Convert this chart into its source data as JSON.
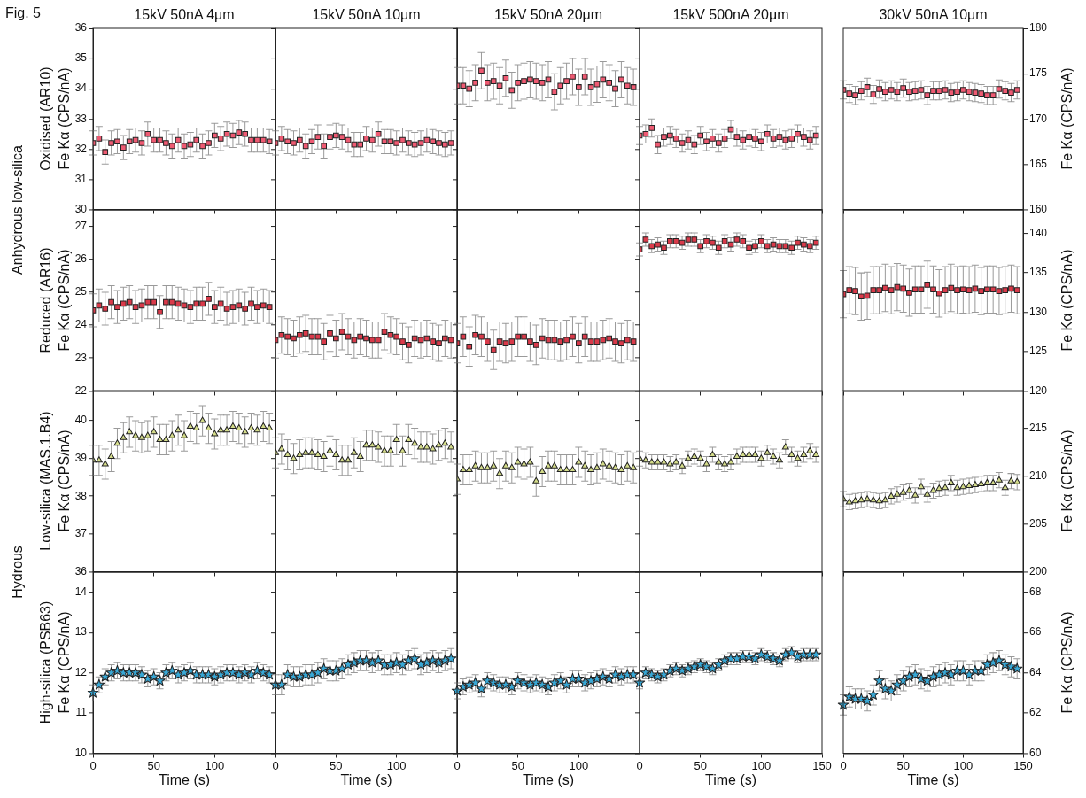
{
  "chart_data": [
    {
      "type": "scatter",
      "title": "15kV 50nA 4μm",
      "ylabel": "Fe Kα (CPS/nA)",
      "annotations": [
        "Fig. 5",
        "Anhydrous low-silica",
        "Oxidised (AR10)"
      ],
      "marker": "square",
      "color": "#ee5a72",
      "x": [
        0,
        5,
        10,
        15,
        20,
        25,
        30,
        35,
        40,
        45,
        50,
        55,
        60,
        65,
        70,
        75,
        80,
        85,
        90,
        95,
        100,
        105,
        110,
        115,
        120,
        125,
        130,
        135,
        140,
        145
      ],
      "values": [
        32.2,
        32.35,
        31.9,
        32.2,
        32.25,
        32.05,
        32.25,
        32.3,
        32.2,
        32.5,
        32.3,
        32.3,
        32.2,
        32.1,
        32.3,
        32.1,
        32.15,
        32.3,
        32.1,
        32.2,
        32.45,
        32.35,
        32.5,
        32.45,
        32.55,
        32.5,
        32.3,
        32.3,
        32.3,
        32.25
      ],
      "errors": [
        0.4,
        0.4,
        0.4,
        0.4,
        0.4,
        0.4,
        0.4,
        0.4,
        0.4,
        0.4,
        0.4,
        0.4,
        0.4,
        0.4,
        0.4,
        0.4,
        0.4,
        0.4,
        0.4,
        0.4,
        0.4,
        0.4,
        0.4,
        0.4,
        0.4,
        0.4,
        0.4,
        0.4,
        0.4,
        0.4
      ],
      "xlim": [
        0,
        150
      ],
      "xticks": [
        0,
        50,
        100,
        150
      ],
      "ylim": [
        30,
        36
      ],
      "yticks": [
        30,
        31,
        32,
        33,
        34,
        35,
        36
      ],
      "tick_labels": "y"
    },
    {
      "type": "scatter",
      "title": "15kV 50nA 10μm",
      "marker": "square",
      "color": "#ee5a72",
      "x": [
        0,
        5,
        10,
        15,
        20,
        25,
        30,
        35,
        40,
        45,
        50,
        55,
        60,
        65,
        70,
        75,
        80,
        85,
        90,
        95,
        100,
        105,
        110,
        115,
        120,
        125,
        130,
        135,
        140,
        145
      ],
      "values": [
        32.2,
        32.35,
        32.25,
        32.2,
        32.3,
        32.1,
        32.25,
        32.4,
        32.1,
        32.4,
        32.45,
        32.4,
        32.3,
        32.15,
        32.15,
        32.35,
        32.3,
        32.5,
        32.25,
        32.25,
        32.2,
        32.3,
        32.2,
        32.15,
        32.2,
        32.3,
        32.25,
        32.2,
        32.15,
        32.2
      ],
      "errors": [
        0.4,
        0.4,
        0.4,
        0.4,
        0.4,
        0.4,
        0.4,
        0.4,
        0.4,
        0.4,
        0.4,
        0.4,
        0.4,
        0.4,
        0.4,
        0.4,
        0.4,
        0.4,
        0.4,
        0.4,
        0.4,
        0.4,
        0.4,
        0.4,
        0.4,
        0.4,
        0.4,
        0.4,
        0.4,
        0.4
      ],
      "xlim": [
        0,
        150
      ],
      "xticks": [
        0,
        50,
        100,
        150
      ],
      "ylim": [
        30,
        36
      ],
      "yticks": [
        30,
        31,
        32,
        33,
        34,
        35,
        36
      ],
      "tick_labels": false
    },
    {
      "type": "scatter",
      "title": "15kV 50nA 20μm",
      "marker": "square",
      "color": "#ee5a72",
      "x": [
        0,
        5,
        10,
        15,
        20,
        25,
        30,
        35,
        40,
        45,
        50,
        55,
        60,
        65,
        70,
        75,
        80,
        85,
        90,
        95,
        100,
        105,
        110,
        115,
        120,
        125,
        130,
        135,
        140,
        145
      ],
      "values": [
        34.1,
        34.1,
        34.0,
        34.2,
        34.6,
        34.2,
        34.25,
        34.1,
        34.35,
        33.95,
        34.2,
        34.25,
        34.3,
        34.25,
        34.2,
        34.3,
        33.9,
        34.1,
        34.25,
        34.4,
        34.05,
        34.4,
        34.05,
        34.15,
        34.3,
        34.2,
        34.0,
        34.3,
        34.1,
        34.05
      ],
      "errors": [
        0.6,
        0.6,
        0.6,
        0.6,
        0.6,
        0.6,
        0.6,
        0.6,
        0.6,
        0.6,
        0.6,
        0.6,
        0.6,
        0.6,
        0.6,
        0.6,
        0.6,
        0.6,
        0.6,
        0.6,
        0.6,
        0.6,
        0.6,
        0.6,
        0.6,
        0.6,
        0.6,
        0.6,
        0.6,
        0.6
      ],
      "xlim": [
        0,
        150
      ],
      "xticks": [
        0,
        50,
        100,
        150
      ],
      "ylim": [
        30,
        36
      ],
      "yticks": [
        30,
        31,
        32,
        33,
        34,
        35,
        36
      ],
      "tick_labels": false
    },
    {
      "type": "scatter",
      "title": "15kV 500nA 20μm",
      "marker": "square",
      "color": "#ee5a72",
      "x": [
        0,
        5,
        10,
        15,
        20,
        25,
        30,
        35,
        40,
        45,
        50,
        55,
        60,
        65,
        70,
        75,
        80,
        85,
        90,
        95,
        100,
        105,
        110,
        115,
        120,
        125,
        130,
        135,
        140,
        145
      ],
      "values": [
        32.45,
        32.5,
        32.7,
        32.15,
        32.4,
        32.45,
        32.35,
        32.2,
        32.3,
        32.15,
        32.45,
        32.25,
        32.35,
        32.2,
        32.35,
        32.65,
        32.4,
        32.3,
        32.4,
        32.35,
        32.25,
        32.5,
        32.35,
        32.4,
        32.3,
        32.35,
        32.5,
        32.4,
        32.3,
        32.45
      ],
      "errors": [
        0.3,
        0.3,
        0.3,
        0.3,
        0.3,
        0.3,
        0.3,
        0.3,
        0.3,
        0.3,
        0.3,
        0.3,
        0.3,
        0.3,
        0.3,
        0.3,
        0.3,
        0.3,
        0.3,
        0.3,
        0.3,
        0.3,
        0.3,
        0.3,
        0.3,
        0.3,
        0.3,
        0.3,
        0.3,
        0.3
      ],
      "xlim": [
        0,
        150
      ],
      "xticks": [
        0,
        50,
        100,
        150
      ],
      "ylim": [
        30,
        36
      ],
      "yticks": [
        30,
        31,
        32,
        33,
        34,
        35,
        36
      ],
      "tick_labels": false
    },
    {
      "type": "scatter",
      "title": "30kV 50nA 10μm",
      "ylabel": "Fe Kα (CPS/nA)",
      "marker": "square",
      "color": "#ee5a72",
      "x": [
        0,
        5,
        10,
        15,
        20,
        25,
        30,
        35,
        40,
        45,
        50,
        55,
        60,
        65,
        70,
        75,
        80,
        85,
        90,
        95,
        100,
        105,
        110,
        115,
        120,
        125,
        130,
        135,
        140,
        145
      ],
      "values": [
        173.2,
        172.8,
        172.6,
        173.1,
        173.5,
        172.7,
        173.3,
        173.0,
        173.2,
        173.0,
        173.4,
        173.0,
        173.1,
        173.2,
        172.6,
        173.1,
        173.1,
        173.2,
        172.9,
        173.0,
        173.2,
        173.0,
        172.9,
        172.8,
        172.6,
        172.6,
        173.3,
        173.1,
        172.9,
        173.2
      ],
      "errors": [
        1,
        1,
        1,
        1,
        1,
        1,
        1,
        1,
        1,
        1,
        1,
        1,
        1,
        1,
        1,
        1,
        1,
        1,
        1,
        1,
        1,
        1,
        1,
        1,
        1,
        1,
        1,
        1,
        1,
        1
      ],
      "xlim": [
        0,
        150
      ],
      "xticks": [
        0,
        50,
        100,
        150
      ],
      "ylim": [
        160,
        180
      ],
      "yticks": [
        160,
        165,
        170,
        175,
        180
      ],
      "tick_labels": "y"
    },
    {
      "type": "scatter",
      "ylabel": "Fe Kα (CPS/nA)",
      "annotations": [
        "Reduced (AR16)"
      ],
      "marker": "square",
      "color": "#d93a4a",
      "x": [
        0,
        5,
        10,
        15,
        20,
        25,
        30,
        35,
        40,
        45,
        50,
        55,
        60,
        65,
        70,
        75,
        80,
        85,
        90,
        95,
        100,
        105,
        110,
        115,
        120,
        125,
        130,
        135,
        140,
        145
      ],
      "values": [
        24.45,
        24.6,
        24.5,
        24.7,
        24.55,
        24.65,
        24.7,
        24.55,
        24.6,
        24.7,
        24.7,
        24.4,
        24.7,
        24.7,
        24.65,
        24.6,
        24.55,
        24.65,
        24.65,
        24.8,
        24.55,
        24.65,
        24.5,
        24.55,
        24.6,
        24.5,
        24.65,
        24.55,
        24.6,
        24.55
      ],
      "errors": [
        0.5,
        0.5,
        0.5,
        0.5,
        0.5,
        0.5,
        0.5,
        0.5,
        0.5,
        0.5,
        0.5,
        0.5,
        0.5,
        0.5,
        0.5,
        0.5,
        0.5,
        0.5,
        0.5,
        0.5,
        0.5,
        0.5,
        0.5,
        0.5,
        0.5,
        0.5,
        0.5,
        0.5,
        0.5,
        0.5
      ],
      "xlim": [
        0,
        150
      ],
      "xticks": [
        0,
        50,
        100,
        150
      ],
      "ylim": [
        22,
        27.5
      ],
      "yticks": [
        22,
        23,
        24,
        25,
        26,
        27
      ],
      "tick_labels": "y"
    },
    {
      "type": "scatter",
      "marker": "square",
      "color": "#d93a4a",
      "x": [
        0,
        5,
        10,
        15,
        20,
        25,
        30,
        35,
        40,
        45,
        50,
        55,
        60,
        65,
        70,
        75,
        80,
        85,
        90,
        95,
        100,
        105,
        110,
        115,
        120,
        125,
        130,
        135,
        140,
        145
      ],
      "values": [
        23.55,
        23.7,
        23.65,
        23.6,
        23.7,
        23.75,
        23.65,
        23.65,
        23.5,
        23.75,
        23.6,
        23.8,
        23.65,
        23.55,
        23.65,
        23.6,
        23.55,
        23.55,
        23.8,
        23.7,
        23.65,
        23.5,
        23.4,
        23.6,
        23.55,
        23.6,
        23.5,
        23.45,
        23.6,
        23.55
      ],
      "errors": [
        0.55,
        0.55,
        0.55,
        0.55,
        0.55,
        0.55,
        0.55,
        0.55,
        0.55,
        0.55,
        0.55,
        0.55,
        0.55,
        0.55,
        0.55,
        0.55,
        0.55,
        0.55,
        0.55,
        0.55,
        0.55,
        0.55,
        0.55,
        0.55,
        0.55,
        0.55,
        0.55,
        0.55,
        0.55,
        0.55
      ],
      "xlim": [
        0,
        150
      ],
      "xticks": [
        0,
        50,
        100,
        150
      ],
      "ylim": [
        22,
        27.5
      ],
      "yticks": [
        22,
        23,
        24,
        25,
        26,
        27
      ],
      "tick_labels": false
    },
    {
      "type": "scatter",
      "marker": "square",
      "color": "#d93a4a",
      "x": [
        0,
        5,
        10,
        15,
        20,
        25,
        30,
        35,
        40,
        45,
        50,
        55,
        60,
        65,
        70,
        75,
        80,
        85,
        90,
        95,
        100,
        105,
        110,
        115,
        120,
        125,
        130,
        135,
        140,
        145
      ],
      "values": [
        23.45,
        23.65,
        23.35,
        23.7,
        23.65,
        23.5,
        23.25,
        23.5,
        23.45,
        23.5,
        23.65,
        23.65,
        23.5,
        23.4,
        23.6,
        23.55,
        23.55,
        23.5,
        23.55,
        23.65,
        23.45,
        23.65,
        23.5,
        23.5,
        23.55,
        23.6,
        23.5,
        23.45,
        23.55,
        23.5
      ],
      "errors": [
        0.6,
        0.6,
        0.6,
        0.6,
        0.6,
        0.6,
        0.6,
        0.6,
        0.6,
        0.6,
        0.6,
        0.6,
        0.6,
        0.6,
        0.6,
        0.6,
        0.6,
        0.6,
        0.6,
        0.6,
        0.6,
        0.6,
        0.6,
        0.6,
        0.6,
        0.6,
        0.6,
        0.6,
        0.6,
        0.6
      ],
      "xlim": [
        0,
        150
      ],
      "xticks": [
        0,
        50,
        100,
        150
      ],
      "ylim": [
        22,
        27.5
      ],
      "yticks": [
        22,
        23,
        24,
        25,
        26,
        27
      ],
      "tick_labels": false
    },
    {
      "type": "scatter",
      "marker": "square",
      "color": "#d93a4a",
      "x": [
        0,
        5,
        10,
        15,
        20,
        25,
        30,
        35,
        40,
        45,
        50,
        55,
        60,
        65,
        70,
        75,
        80,
        85,
        90,
        95,
        100,
        105,
        110,
        115,
        120,
        125,
        130,
        135,
        140,
        145
      ],
      "values": [
        26.3,
        26.6,
        26.4,
        26.45,
        26.35,
        26.55,
        26.55,
        26.5,
        26.6,
        26.6,
        26.4,
        26.55,
        26.5,
        26.35,
        26.55,
        26.45,
        26.6,
        26.55,
        26.35,
        26.4,
        26.55,
        26.4,
        26.45,
        26.4,
        26.4,
        26.35,
        26.5,
        26.45,
        26.4,
        26.5
      ],
      "errors": [
        0.2,
        0.2,
        0.2,
        0.2,
        0.2,
        0.2,
        0.2,
        0.2,
        0.2,
        0.2,
        0.2,
        0.2,
        0.2,
        0.2,
        0.2,
        0.2,
        0.2,
        0.2,
        0.2,
        0.2,
        0.2,
        0.2,
        0.2,
        0.2,
        0.2,
        0.2,
        0.2,
        0.2,
        0.2,
        0.2
      ],
      "xlim": [
        0,
        150
      ],
      "xticks": [
        0,
        50,
        100,
        150
      ],
      "ylim": [
        22,
        27.5
      ],
      "yticks": [
        22,
        23,
        24,
        25,
        26,
        27
      ],
      "tick_labels": false
    },
    {
      "type": "scatter",
      "ylabel": "Fe Kα (CPS/nA)",
      "marker": "square",
      "color": "#d93a4a",
      "x": [
        0,
        5,
        10,
        15,
        20,
        25,
        30,
        35,
        40,
        45,
        50,
        55,
        60,
        65,
        70,
        75,
        80,
        85,
        90,
        95,
        100,
        105,
        110,
        115,
        120,
        125,
        130,
        135,
        140,
        145
      ],
      "values": [
        132.3,
        132.8,
        132.7,
        132.0,
        132.1,
        132.8,
        132.8,
        133.1,
        132.8,
        133.2,
        133.0,
        132.5,
        132.9,
        132.9,
        133.5,
        132.9,
        132.4,
        132.8,
        133.1,
        132.8,
        132.9,
        132.8,
        133.0,
        132.7,
        132.9,
        132.9,
        132.7,
        132.8,
        133.0,
        132.8
      ],
      "errors": [
        3,
        3,
        3,
        3,
        3,
        3,
        3,
        3,
        3,
        3,
        3,
        3,
        3,
        3,
        3,
        3,
        3,
        3,
        3,
        3,
        3,
        3,
        3,
        3,
        3,
        3,
        3,
        3,
        3,
        3
      ],
      "xlim": [
        0,
        150
      ],
      "xticks": [
        0,
        50,
        100,
        150
      ],
      "ylim": [
        120,
        143
      ],
      "yticks": [
        120,
        125,
        130,
        135,
        140
      ],
      "tick_labels": "y"
    },
    {
      "type": "scatter",
      "ylabel": "Fe Kα (CPS/nA)",
      "annotations": [
        "Hydrous",
        "Low-silica (MAS.1.B4)"
      ],
      "marker": "triangle",
      "color": "#d4dc8a",
      "x": [
        0,
        5,
        10,
        15,
        20,
        25,
        30,
        35,
        40,
        45,
        50,
        55,
        60,
        65,
        70,
        75,
        80,
        85,
        90,
        95,
        100,
        105,
        110,
        115,
        120,
        125,
        130,
        135,
        140,
        145
      ],
      "values": [
        38.95,
        38.95,
        38.85,
        39.05,
        39.4,
        39.55,
        39.7,
        39.6,
        39.55,
        39.6,
        39.7,
        39.5,
        39.5,
        39.6,
        39.75,
        39.6,
        39.85,
        39.8,
        40.0,
        39.8,
        39.65,
        39.75,
        39.75,
        39.85,
        39.8,
        39.7,
        39.8,
        39.75,
        39.85,
        39.8
      ],
      "errors": [
        0.4,
        0.4,
        0.4,
        0.4,
        0.4,
        0.4,
        0.4,
        0.4,
        0.4,
        0.4,
        0.4,
        0.4,
        0.4,
        0.4,
        0.4,
        0.4,
        0.4,
        0.4,
        0.4,
        0.4,
        0.4,
        0.4,
        0.4,
        0.4,
        0.4,
        0.4,
        0.4,
        0.4,
        0.4,
        0.4
      ],
      "xlim": [
        0,
        150
      ],
      "xticks": [
        0,
        50,
        100,
        150
      ],
      "ylim": [
        36,
        40.8
      ],
      "yticks": [
        36,
        37,
        38,
        39,
        40
      ],
      "tick_labels": "y"
    },
    {
      "type": "scatter",
      "marker": "triangle",
      "color": "#d4dc8a",
      "x": [
        0,
        5,
        10,
        15,
        20,
        25,
        30,
        35,
        40,
        45,
        50,
        55,
        60,
        65,
        70,
        75,
        80,
        85,
        90,
        95,
        100,
        105,
        110,
        115,
        120,
        125,
        130,
        135,
        140,
        145
      ],
      "values": [
        39.15,
        39.25,
        39.1,
        39.0,
        39.1,
        39.15,
        39.15,
        39.1,
        39.05,
        39.2,
        39.1,
        38.95,
        38.95,
        39.15,
        39.05,
        39.35,
        39.35,
        39.3,
        39.2,
        39.2,
        39.5,
        39.2,
        39.5,
        39.4,
        39.3,
        39.3,
        39.25,
        39.35,
        39.4,
        39.3
      ],
      "errors": [
        0.4,
        0.4,
        0.4,
        0.4,
        0.4,
        0.4,
        0.4,
        0.4,
        0.4,
        0.4,
        0.4,
        0.4,
        0.4,
        0.4,
        0.4,
        0.4,
        0.4,
        0.4,
        0.4,
        0.4,
        0.4,
        0.4,
        0.4,
        0.4,
        0.4,
        0.4,
        0.4,
        0.4,
        0.4,
        0.4
      ],
      "xlim": [
        0,
        150
      ],
      "xticks": [
        0,
        50,
        100,
        150
      ],
      "ylim": [
        36,
        40.8
      ],
      "yticks": [
        36,
        37,
        38,
        39,
        40
      ],
      "tick_labels": false
    },
    {
      "type": "scatter",
      "marker": "triangle",
      "color": "#d4dc8a",
      "x": [
        0,
        5,
        10,
        15,
        20,
        25,
        30,
        35,
        40,
        45,
        50,
        55,
        60,
        65,
        70,
        75,
        80,
        85,
        90,
        95,
        100,
        105,
        110,
        115,
        120,
        125,
        130,
        135,
        140,
        145
      ],
      "values": [
        38.45,
        38.7,
        38.7,
        38.8,
        38.75,
        38.75,
        38.8,
        38.6,
        38.8,
        38.75,
        38.9,
        38.85,
        38.9,
        38.4,
        38.65,
        38.8,
        38.8,
        38.7,
        38.7,
        38.7,
        38.9,
        38.8,
        38.7,
        38.75,
        38.85,
        38.8,
        38.75,
        38.7,
        38.8,
        38.75
      ],
      "errors": [
        0.4,
        0.4,
        0.4,
        0.4,
        0.4,
        0.4,
        0.4,
        0.4,
        0.4,
        0.4,
        0.4,
        0.4,
        0.4,
        0.4,
        0.4,
        0.4,
        0.4,
        0.4,
        0.4,
        0.4,
        0.4,
        0.4,
        0.4,
        0.4,
        0.4,
        0.4,
        0.4,
        0.4,
        0.4,
        0.4
      ],
      "xlim": [
        0,
        150
      ],
      "xticks": [
        0,
        50,
        100,
        150
      ],
      "ylim": [
        36,
        40.8
      ],
      "yticks": [
        36,
        37,
        38,
        39,
        40
      ],
      "tick_labels": false
    },
    {
      "type": "scatter",
      "marker": "triangle",
      "color": "#d4dc8a",
      "x": [
        0,
        5,
        10,
        15,
        20,
        25,
        30,
        35,
        40,
        45,
        50,
        55,
        60,
        65,
        70,
        75,
        80,
        85,
        90,
        95,
        100,
        105,
        110,
        115,
        120,
        125,
        130,
        135,
        140,
        145
      ],
      "values": [
        39.0,
        38.95,
        38.9,
        38.9,
        38.9,
        38.85,
        38.9,
        38.8,
        39.0,
        39.05,
        39.0,
        38.85,
        39.1,
        38.9,
        38.85,
        38.9,
        39.05,
        39.1,
        39.1,
        39.1,
        39.0,
        39.15,
        39.05,
        38.95,
        39.3,
        39.1,
        39.0,
        39.1,
        39.2,
        39.1
      ],
      "errors": [
        0.2,
        0.2,
        0.2,
        0.2,
        0.2,
        0.2,
        0.2,
        0.2,
        0.2,
        0.2,
        0.2,
        0.2,
        0.2,
        0.2,
        0.2,
        0.2,
        0.2,
        0.2,
        0.2,
        0.2,
        0.2,
        0.2,
        0.2,
        0.2,
        0.2,
        0.2,
        0.2,
        0.2,
        0.2,
        0.2
      ],
      "xlim": [
        0,
        150
      ],
      "xticks": [
        0,
        50,
        100,
        150
      ],
      "ylim": [
        36,
        40.8
      ],
      "yticks": [
        36,
        37,
        38,
        39,
        40
      ],
      "tick_labels": false
    },
    {
      "type": "scatter",
      "ylabel": "Fe Kα (CPS/nA)",
      "marker": "triangle",
      "color": "#d4dc8a",
      "x": [
        0,
        5,
        10,
        15,
        20,
        25,
        30,
        35,
        40,
        45,
        50,
        55,
        60,
        65,
        70,
        75,
        80,
        85,
        90,
        95,
        100,
        105,
        110,
        115,
        120,
        125,
        130,
        135,
        140,
        145
      ],
      "values": [
        207.6,
        207.3,
        207.4,
        207.5,
        207.6,
        207.5,
        207.4,
        207.5,
        207.9,
        208.1,
        208.3,
        208.5,
        208.0,
        208.9,
        208.1,
        208.5,
        208.7,
        208.8,
        209.3,
        208.8,
        208.9,
        209.0,
        209.1,
        209.2,
        209.3,
        209.3,
        209.6,
        208.8,
        209.5,
        209.4
      ],
      "errors": [
        0.8,
        0.8,
        0.8,
        0.8,
        0.8,
        0.8,
        0.8,
        0.8,
        0.8,
        0.8,
        0.8,
        0.8,
        0.8,
        0.8,
        0.8,
        0.8,
        0.8,
        0.8,
        0.8,
        0.8,
        0.8,
        0.8,
        0.8,
        0.8,
        0.8,
        0.8,
        0.8,
        0.8,
        0.8,
        0.8
      ],
      "xlim": [
        0,
        150
      ],
      "xticks": [
        0,
        50,
        100,
        150
      ],
      "ylim": [
        200,
        219
      ],
      "yticks": [
        200,
        205,
        210,
        215
      ],
      "tick_labels": "y"
    },
    {
      "type": "scatter",
      "xlabel": "Time (s)",
      "ylabel": "Fe Kα (CPS/nA)",
      "annotations": [
        "High-silica (PSB63)"
      ],
      "marker": "star",
      "color": "#38a8d6",
      "x": [
        0,
        5,
        10,
        15,
        20,
        25,
        30,
        35,
        40,
        45,
        50,
        55,
        60,
        65,
        70,
        75,
        80,
        85,
        90,
        95,
        100,
        105,
        110,
        115,
        120,
        125,
        130,
        135,
        140,
        145
      ],
      "values": [
        11.5,
        11.7,
        11.9,
        12.0,
        12.05,
        12.0,
        12.0,
        12.0,
        11.95,
        11.85,
        11.9,
        11.8,
        12.0,
        12.05,
        11.95,
        12.0,
        12.05,
        11.95,
        11.95,
        11.95,
        11.9,
        11.95,
        12.0,
        12.0,
        11.95,
        12.0,
        11.95,
        12.05,
        12.0,
        11.95
      ],
      "errors": [
        0.2,
        0.2,
        0.2,
        0.2,
        0.2,
        0.2,
        0.2,
        0.2,
        0.2,
        0.2,
        0.2,
        0.2,
        0.2,
        0.2,
        0.2,
        0.2,
        0.2,
        0.2,
        0.2,
        0.2,
        0.2,
        0.2,
        0.2,
        0.2,
        0.2,
        0.2,
        0.2,
        0.2,
        0.2,
        0.2
      ],
      "xlim": [
        0,
        150
      ],
      "xticks": [
        0,
        50,
        100
      ],
      "ylim": [
        10,
        14.5
      ],
      "yticks": [
        10,
        11,
        12,
        13,
        14
      ]
    },
    {
      "type": "scatter",
      "xlabel": "Time (s)",
      "marker": "star",
      "color": "#38a8d6",
      "x": [
        0,
        5,
        10,
        15,
        20,
        25,
        30,
        35,
        40,
        45,
        50,
        55,
        60,
        65,
        70,
        75,
        80,
        85,
        90,
        95,
        100,
        105,
        110,
        115,
        120,
        125,
        130,
        135,
        140,
        145
      ],
      "values": [
        11.7,
        11.7,
        11.95,
        11.9,
        11.9,
        11.95,
        11.95,
        12.0,
        12.1,
        12.05,
        12.05,
        12.1,
        12.2,
        12.25,
        12.3,
        12.3,
        12.25,
        12.3,
        12.2,
        12.2,
        12.25,
        12.2,
        12.3,
        12.35,
        12.2,
        12.25,
        12.3,
        12.25,
        12.3,
        12.35
      ],
      "errors": [
        0.25,
        0.25,
        0.25,
        0.25,
        0.25,
        0.25,
        0.25,
        0.25,
        0.25,
        0.25,
        0.25,
        0.25,
        0.25,
        0.25,
        0.25,
        0.25,
        0.25,
        0.25,
        0.25,
        0.25,
        0.25,
        0.25,
        0.25,
        0.25,
        0.25,
        0.25,
        0.25,
        0.25,
        0.25,
        0.25
      ],
      "xlim": [
        0,
        150
      ],
      "xticks": [
        0,
        50,
        100
      ],
      "ylim": [
        10,
        14.5
      ],
      "yticks": [
        10,
        11,
        12,
        13,
        14
      ],
      "tick_labels": "x"
    },
    {
      "type": "scatter",
      "xlabel": "Time (s)",
      "marker": "star",
      "color": "#38a8d6",
      "x": [
        0,
        5,
        10,
        15,
        20,
        25,
        30,
        35,
        40,
        45,
        50,
        55,
        60,
        65,
        70,
        75,
        80,
        85,
        90,
        95,
        100,
        105,
        110,
        115,
        120,
        125,
        130,
        135,
        140,
        145
      ],
      "values": [
        11.55,
        11.65,
        11.7,
        11.75,
        11.6,
        11.8,
        11.75,
        11.7,
        11.7,
        11.65,
        11.8,
        11.75,
        11.7,
        11.75,
        11.7,
        11.65,
        11.75,
        11.8,
        11.7,
        11.85,
        11.85,
        11.75,
        11.8,
        11.85,
        11.9,
        11.85,
        11.95,
        11.9,
        11.95,
        11.95
      ],
      "errors": [
        0.2,
        0.2,
        0.2,
        0.2,
        0.2,
        0.2,
        0.2,
        0.2,
        0.2,
        0.2,
        0.2,
        0.2,
        0.2,
        0.2,
        0.2,
        0.2,
        0.2,
        0.2,
        0.2,
        0.2,
        0.2,
        0.2,
        0.2,
        0.2,
        0.2,
        0.2,
        0.2,
        0.2,
        0.2,
        0.2
      ],
      "xlim": [
        0,
        150
      ],
      "xticks": [
        0,
        50,
        100
      ],
      "ylim": [
        10,
        14.5
      ],
      "yticks": [
        10,
        11,
        12,
        13,
        14
      ],
      "tick_labels": "x"
    },
    {
      "type": "scatter",
      "xlabel": "Time (s)",
      "marker": "star",
      "color": "#38a8d6",
      "x": [
        0,
        5,
        10,
        15,
        20,
        25,
        30,
        35,
        40,
        45,
        50,
        55,
        60,
        65,
        70,
        75,
        80,
        85,
        90,
        95,
        100,
        105,
        110,
        115,
        120,
        125,
        130,
        135,
        140,
        145
      ],
      "values": [
        11.75,
        12.0,
        11.95,
        11.9,
        11.95,
        12.05,
        12.1,
        12.05,
        12.1,
        12.15,
        12.2,
        12.15,
        12.1,
        12.2,
        12.3,
        12.35,
        12.35,
        12.4,
        12.4,
        12.35,
        12.45,
        12.4,
        12.35,
        12.3,
        12.45,
        12.5,
        12.4,
        12.45,
        12.45,
        12.45
      ],
      "errors": [
        0.15,
        0.15,
        0.15,
        0.15,
        0.15,
        0.15,
        0.15,
        0.15,
        0.15,
        0.15,
        0.15,
        0.15,
        0.15,
        0.15,
        0.15,
        0.15,
        0.15,
        0.15,
        0.15,
        0.15,
        0.15,
        0.15,
        0.15,
        0.15,
        0.15,
        0.15,
        0.15,
        0.15,
        0.15,
        0.15
      ],
      "xlim": [
        0,
        150
      ],
      "xticks": [
        0,
        50,
        100,
        150
      ],
      "ylim": [
        10,
        14.5
      ],
      "yticks": [
        10,
        11,
        12,
        13,
        14
      ],
      "tick_labels": "x"
    },
    {
      "type": "scatter",
      "xlabel": "Time (s)",
      "ylabel": "Fe Kα (CPS/nA)",
      "marker": "star",
      "color": "#38a8d6",
      "x": [
        0,
        5,
        10,
        15,
        20,
        25,
        30,
        35,
        40,
        45,
        50,
        55,
        60,
        65,
        70,
        75,
        80,
        85,
        90,
        95,
        100,
        105,
        110,
        115,
        120,
        125,
        130,
        135,
        140,
        145
      ],
      "values": [
        62.4,
        62.8,
        62.7,
        62.7,
        62.6,
        62.9,
        63.6,
        63.2,
        63.1,
        63.4,
        63.6,
        63.8,
        63.9,
        63.7,
        63.6,
        63.8,
        63.9,
        64.0,
        63.9,
        64.1,
        64.1,
        63.9,
        64.1,
        64.1,
        64.4,
        64.5,
        64.6,
        64.4,
        64.3,
        64.2
      ],
      "errors": [
        0.5,
        0.5,
        0.5,
        0.5,
        0.5,
        0.5,
        0.5,
        0.5,
        0.5,
        0.5,
        0.5,
        0.5,
        0.5,
        0.5,
        0.5,
        0.5,
        0.5,
        0.5,
        0.5,
        0.5,
        0.5,
        0.5,
        0.5,
        0.5,
        0.5,
        0.5,
        0.5,
        0.5,
        0.5,
        0.5
      ],
      "xlim": [
        0,
        150
      ],
      "xticks": [
        0,
        50,
        100,
        150
      ],
      "ylim": [
        60,
        69
      ],
      "yticks": [
        60,
        62,
        64,
        66,
        68
      ]
    }
  ]
}
